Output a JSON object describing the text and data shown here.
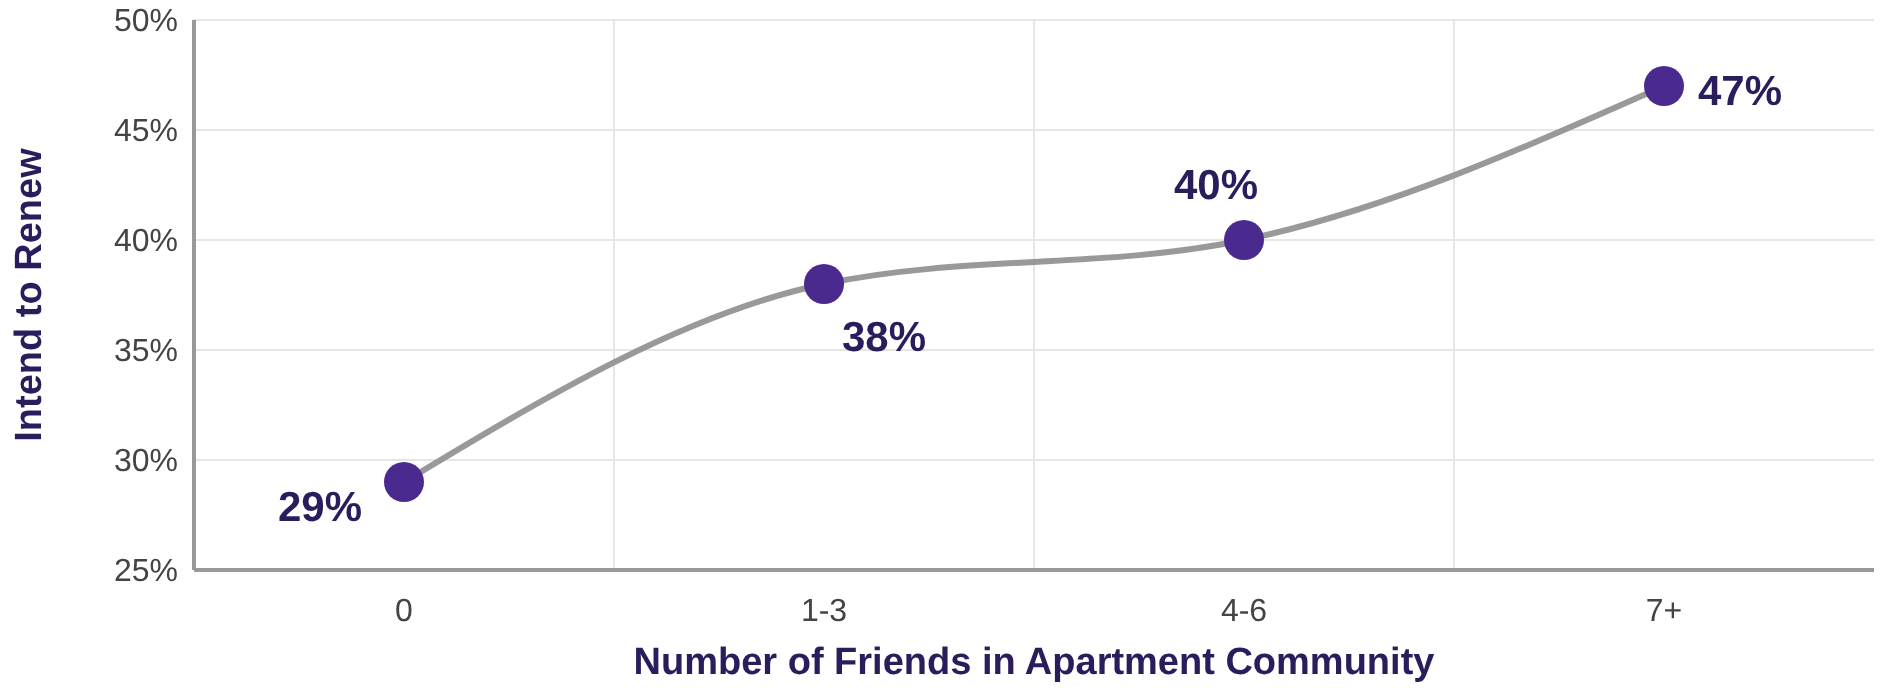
{
  "chart_data": {
    "type": "line",
    "xlabel": "Number of Friends in Apartment Community",
    "ylabel": "Intend to Renew",
    "categories": [
      "0",
      "1-3",
      "4-6",
      "7+"
    ],
    "series": [
      {
        "color": "#4b2a8f",
        "values": [
          29,
          38,
          40,
          47
        ]
      }
    ],
    "value_labels": [
      "29%",
      "38%",
      "40%",
      "47%"
    ],
    "ylim": [
      25,
      50
    ],
    "yticks": [
      {
        "value": 25,
        "label": "25%"
      },
      {
        "value": 30,
        "label": "30%"
      },
      {
        "value": 35,
        "label": "35%"
      },
      {
        "value": 40,
        "label": "40%"
      },
      {
        "value": 45,
        "label": "45%"
      },
      {
        "value": 50,
        "label": "50%"
      }
    ],
    "grid": true,
    "marker": "circle",
    "line_style": "solid"
  }
}
